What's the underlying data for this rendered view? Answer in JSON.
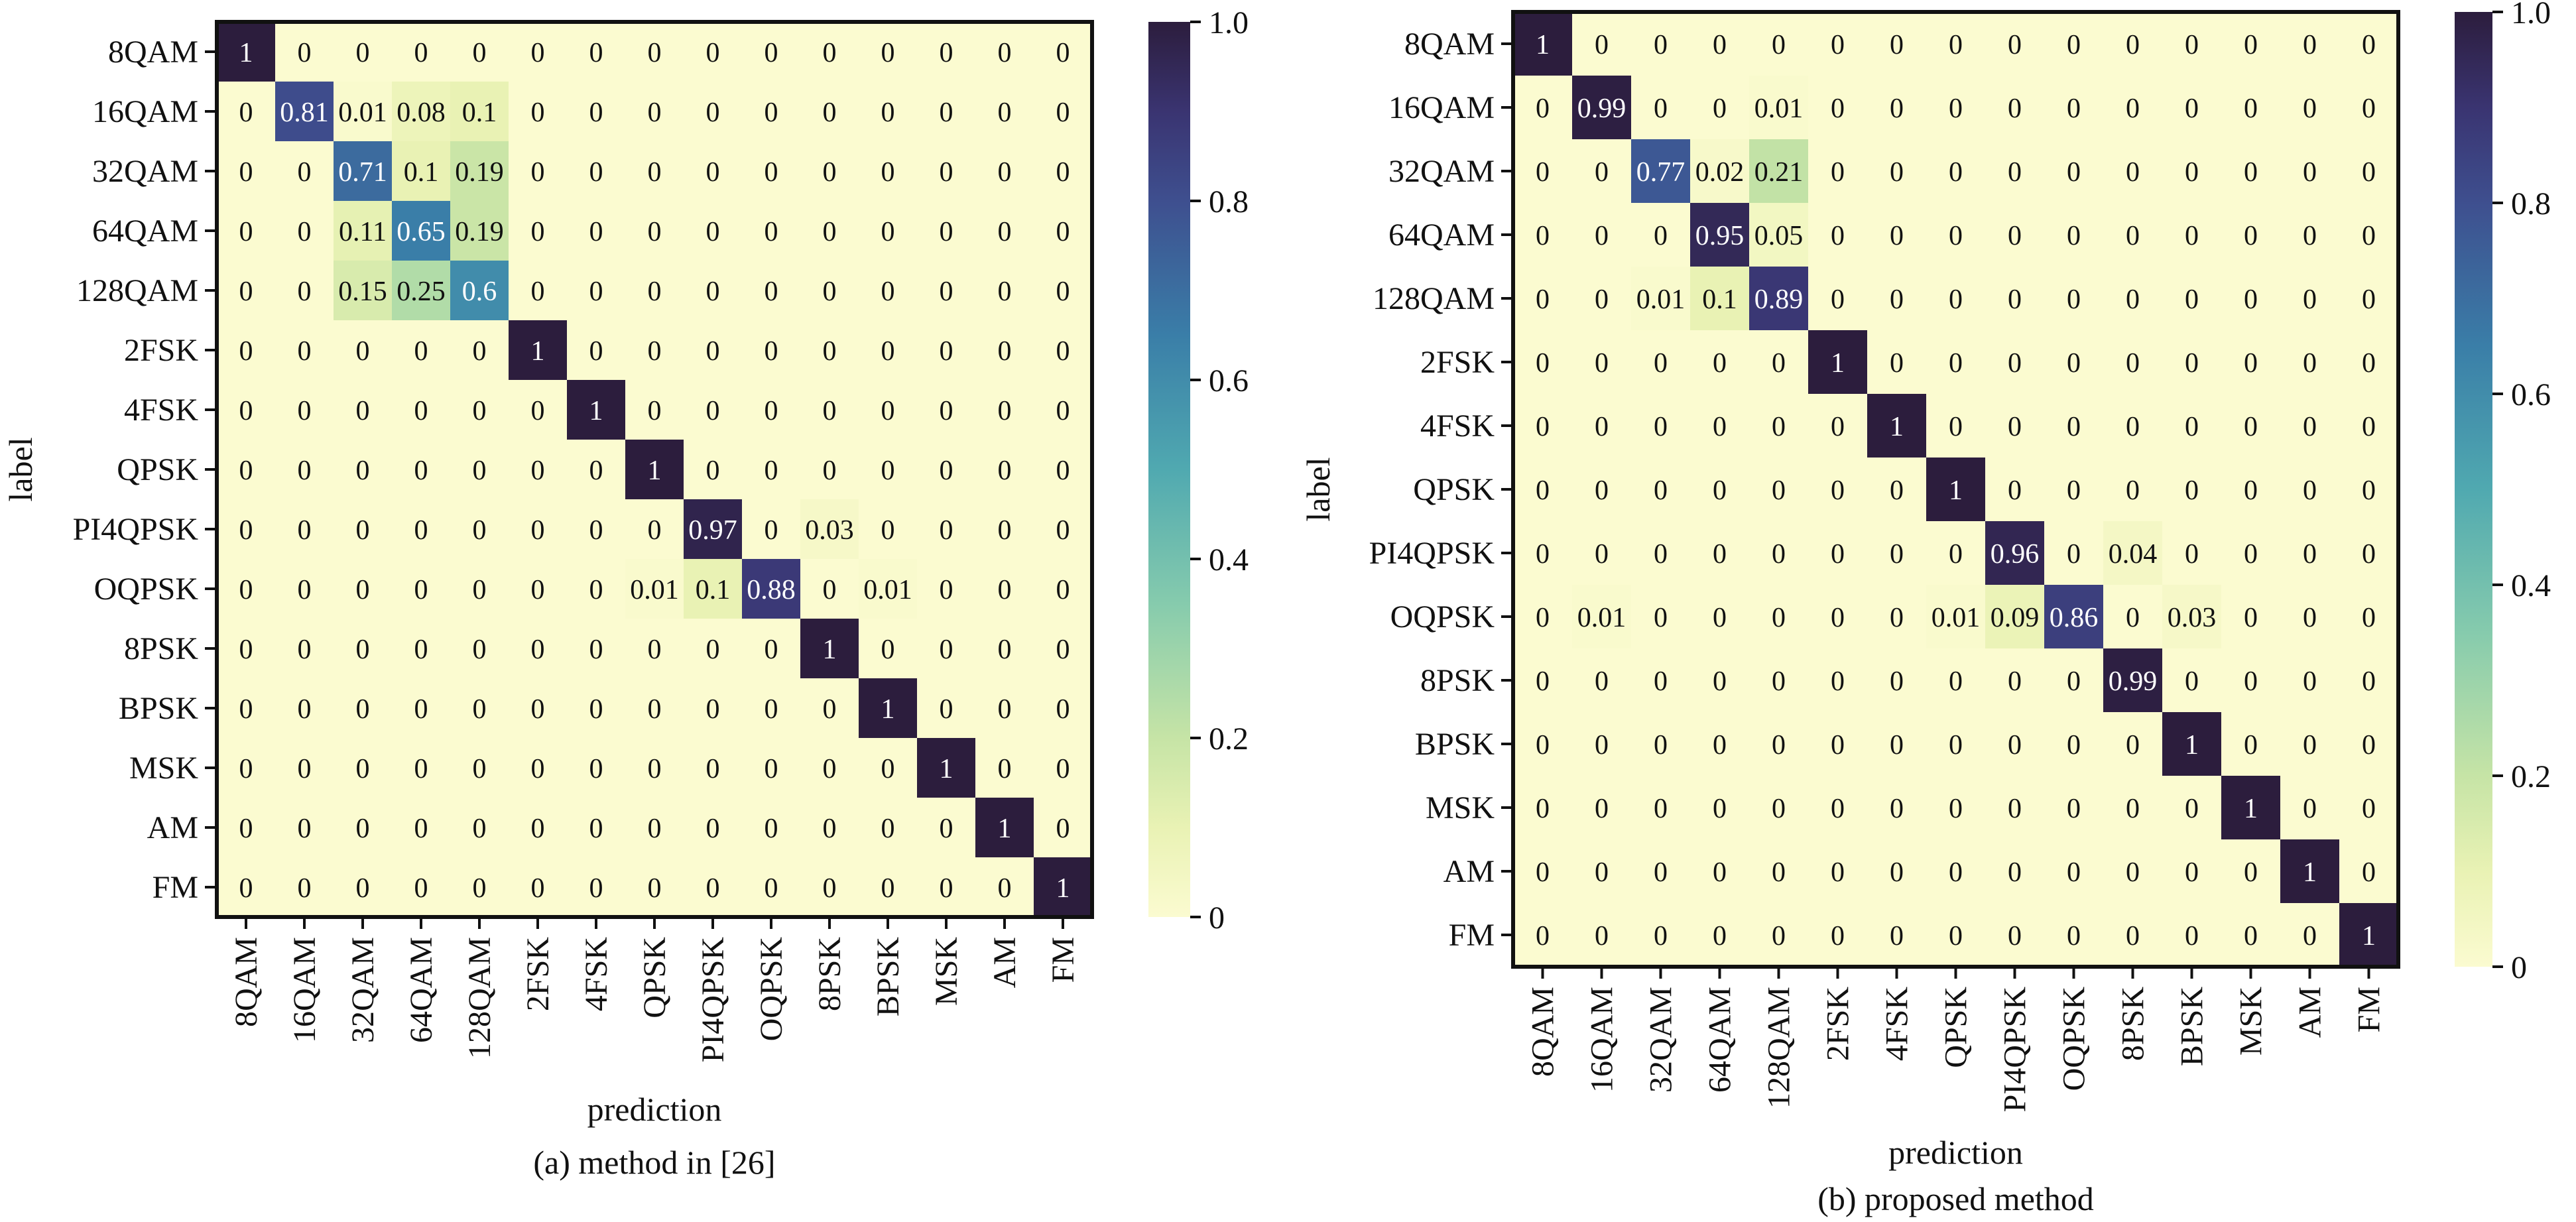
{
  "chart_data": [
    {
      "type": "heatmap",
      "caption": "(a) method in [26]",
      "xlabel": "prediction",
      "ylabel": "label",
      "rows": [
        "8QAM",
        "16QAM",
        "32QAM",
        "64QAM",
        "128QAM",
        "2FSK",
        "4FSK",
        "QPSK",
        "PI4QPSK",
        "OQPSK",
        "8PSK",
        "BPSK",
        "MSK",
        "AM",
        "FM"
      ],
      "cols": [
        "8QAM",
        "16QAM",
        "32QAM",
        "64QAM",
        "128QAM",
        "2FSK",
        "4FSK",
        "QPSK",
        "PI4QPSK",
        "OQPSK",
        "8PSK",
        "BPSK",
        "MSK",
        "AM",
        "FM"
      ],
      "values": [
        [
          1,
          0,
          0,
          0,
          0,
          0,
          0,
          0,
          0,
          0,
          0,
          0,
          0,
          0,
          0
        ],
        [
          0,
          0.81,
          0.01,
          0.08,
          0.1,
          0,
          0,
          0,
          0,
          0,
          0,
          0,
          0,
          0,
          0
        ],
        [
          0,
          0,
          0.71,
          0.1,
          0.19,
          0,
          0,
          0,
          0,
          0,
          0,
          0,
          0,
          0,
          0
        ],
        [
          0,
          0,
          0.11,
          0.65,
          0.19,
          0,
          0,
          0,
          0,
          0,
          0,
          0,
          0,
          0,
          0
        ],
        [
          0,
          0,
          0.15,
          0.25,
          0.6,
          0,
          0,
          0,
          0,
          0,
          0,
          0,
          0,
          0,
          0
        ],
        [
          0,
          0,
          0,
          0,
          0,
          1,
          0,
          0,
          0,
          0,
          0,
          0,
          0,
          0,
          0
        ],
        [
          0,
          0,
          0,
          0,
          0,
          0,
          1,
          0,
          0,
          0,
          0,
          0,
          0,
          0,
          0
        ],
        [
          0,
          0,
          0,
          0,
          0,
          0,
          0,
          1,
          0,
          0,
          0,
          0,
          0,
          0,
          0
        ],
        [
          0,
          0,
          0,
          0,
          0,
          0,
          0,
          0,
          0.97,
          0,
          0.03,
          0,
          0,
          0,
          0
        ],
        [
          0,
          0,
          0,
          0,
          0,
          0,
          0,
          0.01,
          0.1,
          0.88,
          0,
          0.01,
          0,
          0,
          0
        ],
        [
          0,
          0,
          0,
          0,
          0,
          0,
          0,
          0,
          0,
          0,
          1,
          0,
          0,
          0,
          0
        ],
        [
          0,
          0,
          0,
          0,
          0,
          0,
          0,
          0,
          0,
          0,
          0,
          1,
          0,
          0,
          0
        ],
        [
          0,
          0,
          0,
          0,
          0,
          0,
          0,
          0,
          0,
          0,
          0,
          0,
          1,
          0,
          0
        ],
        [
          0,
          0,
          0,
          0,
          0,
          0,
          0,
          0,
          0,
          0,
          0,
          0,
          0,
          1,
          0
        ],
        [
          0,
          0,
          0,
          0,
          0,
          0,
          0,
          0,
          0,
          0,
          0,
          0,
          0,
          0,
          1
        ]
      ],
      "colorbar": {
        "ticks": [
          "0",
          "0.2",
          "0.4",
          "0.6",
          "0.8",
          "1.0"
        ],
        "range": [
          0,
          1
        ]
      }
    },
    {
      "type": "heatmap",
      "caption": "(b) proposed method",
      "xlabel": "prediction",
      "ylabel": "label",
      "rows": [
        "8QAM",
        "16QAM",
        "32QAM",
        "64QAM",
        "128QAM",
        "2FSK",
        "4FSK",
        "QPSK",
        "PI4QPSK",
        "OQPSK",
        "8PSK",
        "BPSK",
        "MSK",
        "AM",
        "FM"
      ],
      "cols": [
        "8QAM",
        "16QAM",
        "32QAM",
        "64QAM",
        "128QAM",
        "2FSK",
        "4FSK",
        "QPSK",
        "PI4QPSK",
        "OQPSK",
        "8PSK",
        "BPSK",
        "MSK",
        "AM",
        "FM"
      ],
      "values": [
        [
          1,
          0,
          0,
          0,
          0,
          0,
          0,
          0,
          0,
          0,
          0,
          0,
          0,
          0,
          0
        ],
        [
          0,
          0.99,
          0,
          0,
          0.01,
          0,
          0,
          0,
          0,
          0,
          0,
          0,
          0,
          0,
          0
        ],
        [
          0,
          0,
          0.77,
          0.02,
          0.21,
          0,
          0,
          0,
          0,
          0,
          0,
          0,
          0,
          0,
          0
        ],
        [
          0,
          0,
          0,
          0.95,
          0.05,
          0,
          0,
          0,
          0,
          0,
          0,
          0,
          0,
          0,
          0
        ],
        [
          0,
          0,
          0.01,
          0.1,
          0.89,
          0,
          0,
          0,
          0,
          0,
          0,
          0,
          0,
          0,
          0
        ],
        [
          0,
          0,
          0,
          0,
          0,
          1,
          0,
          0,
          0,
          0,
          0,
          0,
          0,
          0,
          0
        ],
        [
          0,
          0,
          0,
          0,
          0,
          0,
          1,
          0,
          0,
          0,
          0,
          0,
          0,
          0,
          0
        ],
        [
          0,
          0,
          0,
          0,
          0,
          0,
          0,
          1,
          0,
          0,
          0,
          0,
          0,
          0,
          0
        ],
        [
          0,
          0,
          0,
          0,
          0,
          0,
          0,
          0,
          0.96,
          0,
          0.04,
          0,
          0,
          0,
          0
        ],
        [
          0,
          0.01,
          0,
          0,
          0,
          0,
          0,
          0.01,
          0.09,
          0.86,
          0,
          0.03,
          0,
          0,
          0
        ],
        [
          0,
          0,
          0,
          0,
          0,
          0,
          0,
          0,
          0,
          0,
          0.99,
          0,
          0,
          0,
          0
        ],
        [
          0,
          0,
          0,
          0,
          0,
          0,
          0,
          0,
          0,
          0,
          0,
          1,
          0,
          0,
          0
        ],
        [
          0,
          0,
          0,
          0,
          0,
          0,
          0,
          0,
          0,
          0,
          0,
          0,
          1,
          0,
          0
        ],
        [
          0,
          0,
          0,
          0,
          0,
          0,
          0,
          0,
          0,
          0,
          0,
          0,
          0,
          1,
          0
        ],
        [
          0,
          0,
          0,
          0,
          0,
          0,
          0,
          0,
          0,
          0,
          0,
          0,
          0,
          0,
          1
        ]
      ],
      "colorbar": {
        "ticks": [
          "0",
          "0.2",
          "0.4",
          "0.6",
          "0.8",
          "1.0"
        ],
        "range": [
          0,
          1
        ]
      }
    }
  ]
}
